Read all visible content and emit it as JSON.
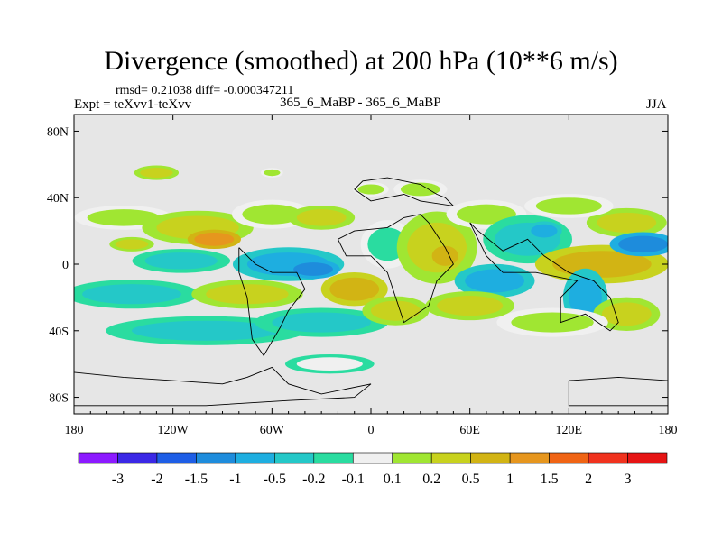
{
  "chart_data": {
    "type": "heatmap",
    "title": "Divergence (smoothed) at 200 hPa (10**6 m/s)",
    "stats": "rmsd= 0.21038  diff= -0.000347211",
    "experiment": "Expt = teXvv1-teXvv",
    "subtitle": "365_6_MaBP - 365_6_MaBP",
    "season": "JJA",
    "xlim": [
      -180,
      180
    ],
    "ylim": [
      -90,
      90
    ],
    "x_ticks": [
      {
        "value": -180,
        "label": "180"
      },
      {
        "value": -120,
        "label": "120W"
      },
      {
        "value": -60,
        "label": "60W"
      },
      {
        "value": 0,
        "label": "0"
      },
      {
        "value": 60,
        "label": "60E"
      },
      {
        "value": 120,
        "label": "120E"
      },
      {
        "value": 180,
        "label": "180"
      }
    ],
    "y_ticks": [
      {
        "value": 80,
        "label": "80N"
      },
      {
        "value": 40,
        "label": "40N"
      },
      {
        "value": 0,
        "label": "0"
      },
      {
        "value": -40,
        "label": "40S"
      },
      {
        "value": -80,
        "label": "80S"
      }
    ],
    "colorbar": {
      "colors": [
        "#8c1aff",
        "#3b28e6",
        "#1e5ee6",
        "#1e8cdc",
        "#1eaee0",
        "#24c8c8",
        "#2adca0",
        "#f0f0f0",
        "#a0e632",
        "#c8d21e",
        "#d2b414",
        "#e6961e",
        "#f06414",
        "#f0321e",
        "#e61414"
      ],
      "labels": [
        "-3",
        "-2",
        "-1.5",
        "-1",
        "-0.5",
        "-0.2",
        "-0.1",
        "0.1",
        "0.2",
        "0.5",
        "1",
        "1.5",
        "2",
        "3"
      ]
    },
    "features": [
      {
        "lon": -150,
        "lat": 28,
        "rx": 22,
        "ry": 5,
        "level": 8
      },
      {
        "lon": -105,
        "lat": 22,
        "rx": 25,
        "ry": 7,
        "level": 9
      },
      {
        "lon": -95,
        "lat": 15,
        "rx": 12,
        "ry": 4,
        "level": 11
      },
      {
        "lon": -60,
        "lat": 30,
        "rx": 18,
        "ry": 6,
        "level": 8
      },
      {
        "lon": -30,
        "lat": 28,
        "rx": 15,
        "ry": 5,
        "level": 9
      },
      {
        "lon": -115,
        "lat": 2,
        "rx": 22,
        "ry": 5,
        "level": 5
      },
      {
        "lon": -50,
        "lat": 0,
        "rx": 25,
        "ry": 7,
        "level": 4
      },
      {
        "lon": -35,
        "lat": -3,
        "rx": 12,
        "ry": 4,
        "level": 3
      },
      {
        "lon": -145,
        "lat": -18,
        "rx": 30,
        "ry": 6,
        "level": 5
      },
      {
        "lon": -75,
        "lat": -18,
        "rx": 25,
        "ry": 6,
        "level": 9
      },
      {
        "lon": -100,
        "lat": -40,
        "rx": 45,
        "ry": 6,
        "level": 5
      },
      {
        "lon": -30,
        "lat": -35,
        "rx": 30,
        "ry": 6,
        "level": 5
      },
      {
        "lon": -10,
        "lat": -15,
        "rx": 15,
        "ry": 7,
        "level": 10
      },
      {
        "lon": -25,
        "lat": -60,
        "rx": 20,
        "ry": 4,
        "level": 7
      },
      {
        "lon": -145,
        "lat": 12,
        "rx": 10,
        "ry": 3,
        "level": 9
      },
      {
        "lon": 10,
        "lat": 12,
        "rx": 12,
        "ry": 10,
        "level": 6
      },
      {
        "lon": 40,
        "lat": 10,
        "rx": 18,
        "ry": 15,
        "level": 9
      },
      {
        "lon": 45,
        "lat": 5,
        "rx": 8,
        "ry": 6,
        "level": 10
      },
      {
        "lon": 15,
        "lat": -28,
        "rx": 15,
        "ry": 6,
        "level": 9
      },
      {
        "lon": 70,
        "lat": 30,
        "rx": 18,
        "ry": 6,
        "level": 8
      },
      {
        "lon": 95,
        "lat": 15,
        "rx": 20,
        "ry": 10,
        "level": 5
      },
      {
        "lon": 105,
        "lat": 20,
        "rx": 8,
        "ry": 4,
        "level": 4
      },
      {
        "lon": 75,
        "lat": -10,
        "rx": 18,
        "ry": 7,
        "level": 4
      },
      {
        "lon": 60,
        "lat": -25,
        "rx": 20,
        "ry": 6,
        "level": 9
      },
      {
        "lon": 140,
        "lat": 0,
        "rx": 30,
        "ry": 8,
        "level": 10
      },
      {
        "lon": 155,
        "lat": 25,
        "rx": 18,
        "ry": 6,
        "level": 9
      },
      {
        "lon": 130,
        "lat": -20,
        "rx": 10,
        "ry": 12,
        "level": 4
      },
      {
        "lon": 155,
        "lat": -30,
        "rx": 15,
        "ry": 7,
        "level": 9
      },
      {
        "lon": 110,
        "lat": -35,
        "rx": 25,
        "ry": 6,
        "level": 8
      },
      {
        "lon": 120,
        "lat": 35,
        "rx": 20,
        "ry": 5,
        "level": 8
      },
      {
        "lon": 30,
        "lat": 45,
        "rx": 12,
        "ry": 4,
        "level": 8
      },
      {
        "lon": 0,
        "lat": 45,
        "rx": 8,
        "ry": 3,
        "level": 8
      },
      {
        "lon": -130,
        "lat": 55,
        "rx": 10,
        "ry": 3,
        "level": 9
      },
      {
        "lon": -60,
        "lat": 55,
        "rx": 5,
        "ry": 2,
        "level": 8
      },
      {
        "lon": 165,
        "lat": 12,
        "rx": 15,
        "ry": 5,
        "level": 3
      }
    ],
    "coastlines": [
      [
        [
          -10,
          45
        ],
        [
          -5,
          50
        ],
        [
          10,
          52
        ],
        [
          20,
          50
        ],
        [
          30,
          48
        ],
        [
          40,
          42
        ],
        [
          45,
          40
        ],
        [
          50,
          35
        ],
        [
          30,
          38
        ],
        [
          20,
          42
        ],
        [
          10,
          40
        ],
        [
          0,
          38
        ],
        [
          -10,
          45
        ]
      ],
      [
        [
          -20,
          15
        ],
        [
          -10,
          20
        ],
        [
          10,
          22
        ],
        [
          20,
          28
        ],
        [
          30,
          30
        ],
        [
          35,
          25
        ],
        [
          45,
          10
        ],
        [
          50,
          0
        ],
        [
          40,
          -10
        ],
        [
          35,
          -25
        ],
        [
          20,
          -35
        ],
        [
          15,
          -20
        ],
        [
          10,
          -5
        ],
        [
          0,
          5
        ],
        [
          -15,
          5
        ],
        [
          -20,
          15
        ]
      ],
      [
        [
          -80,
          10
        ],
        [
          -75,
          5
        ],
        [
          -70,
          0
        ],
        [
          -60,
          -5
        ],
        [
          -45,
          -5
        ],
        [
          -40,
          -15
        ],
        [
          -50,
          -28
        ],
        [
          -55,
          -38
        ],
        [
          -65,
          -55
        ],
        [
          -72,
          -45
        ],
        [
          -75,
          -20
        ],
        [
          -80,
          -5
        ],
        [
          -80,
          10
        ]
      ],
      [
        [
          60,
          25
        ],
        [
          65,
          20
        ],
        [
          80,
          8
        ],
        [
          95,
          15
        ],
        [
          100,
          10
        ],
        [
          105,
          5
        ],
        [
          120,
          -5
        ],
        [
          135,
          -10
        ],
        [
          145,
          -20
        ],
        [
          150,
          -35
        ],
        [
          145,
          -40
        ],
        [
          130,
          -30
        ],
        [
          115,
          -35
        ],
        [
          115,
          -20
        ],
        [
          125,
          -10
        ],
        [
          100,
          -5
        ],
        [
          80,
          -5
        ],
        [
          70,
          5
        ],
        [
          60,
          25
        ]
      ],
      [
        [
          -180,
          -65
        ],
        [
          -150,
          -68
        ],
        [
          -120,
          -70
        ],
        [
          -90,
          -72
        ],
        [
          -75,
          -68
        ],
        [
          -60,
          -62
        ],
        [
          -50,
          -72
        ],
        [
          -30,
          -78
        ],
        [
          0,
          -72
        ],
        [
          -10,
          -80
        ],
        [
          -50,
          -82
        ],
        [
          -100,
          -85
        ],
        [
          -180,
          -85
        ]
      ],
      [
        [
          120,
          -70
        ],
        [
          150,
          -68
        ],
        [
          180,
          -70
        ],
        [
          180,
          -85
        ],
        [
          120,
          -85
        ],
        [
          120,
          -70
        ]
      ]
    ]
  }
}
